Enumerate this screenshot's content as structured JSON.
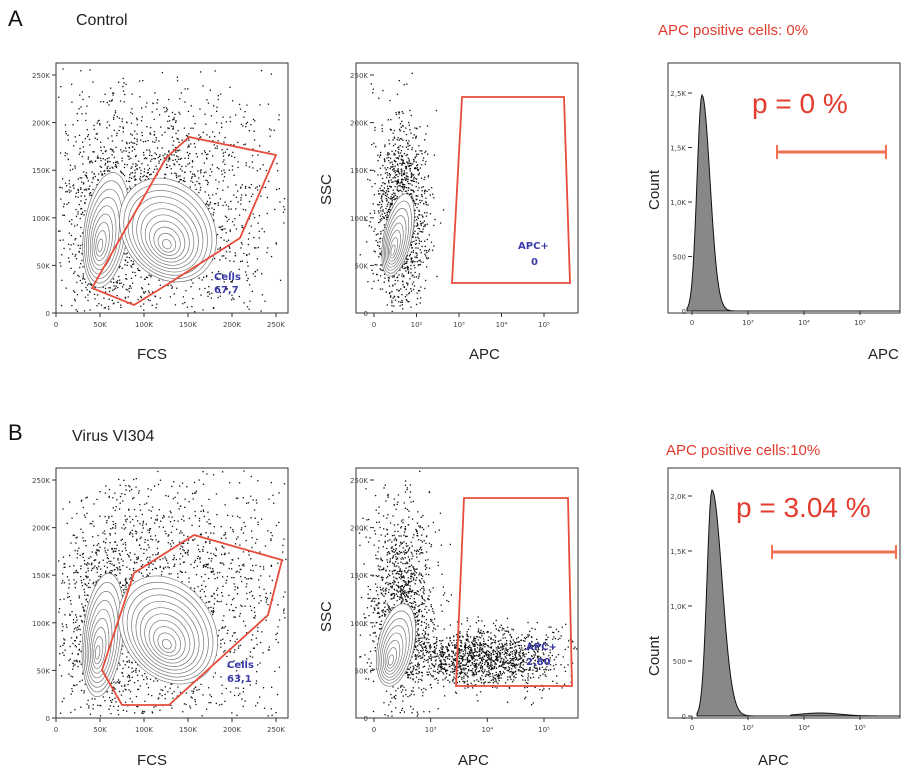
{
  "colors": {
    "gate": "#e74c3c",
    "gate_label": "#3a3aa8",
    "marker": "#f07050",
    "stat": "#e33b2e"
  },
  "panel_a": {
    "letter": "A",
    "title": "Control",
    "positive_text": "APC positive cells: 0%",
    "fcs_xlabel": "FCS",
    "apc_xlabel": "APC",
    "ssc_ylabel": "SSC",
    "hist_xlabel": "APC",
    "hist_ylabel": "Count",
    "p_text": "p = 0 %",
    "cells_gate_name": "Cells",
    "cells_gate_value": "67,7",
    "apc_gate_name": "APC+",
    "apc_gate_value": "0"
  },
  "panel_b": {
    "letter": "B",
    "title": "Virus VI304",
    "positive_text": "APC positive cells:10%",
    "fcs_xlabel": "FCS",
    "apc_xlabel": "APC",
    "ssc_ylabel": "SSC",
    "hist_xlabel": "APC",
    "hist_ylabel": "Count",
    "p_text": "p = 3.04 %",
    "cells_gate_name": "Cells",
    "cells_gate_value": "63,1",
    "apc_gate_name": "APC+",
    "apc_gate_value": "2,80"
  },
  "chart_data": [
    {
      "type": "scatter",
      "panel": "A",
      "plot": "FSC vs SSC",
      "xlabel": "FCS",
      "ylabel": "",
      "x_ticks": [
        "0",
        "50K",
        "100K",
        "150K",
        "200K",
        "250K"
      ],
      "y_ticks": [
        "0",
        "50K",
        "100K",
        "150K",
        "200K",
        "250K"
      ],
      "populations": [
        {
          "x": 55000,
          "y": 100000
        },
        {
          "x": 130000,
          "y": 90000
        }
      ],
      "gate": {
        "name": "Cells",
        "value": 67.7
      }
    },
    {
      "type": "scatter",
      "panel": "A",
      "plot": "APC vs SSC",
      "xlabel": "APC",
      "ylabel": "SSC",
      "x_ticks": [
        "0",
        "10²",
        "10³",
        "10⁴",
        "10⁵"
      ],
      "y_ticks": [
        "0",
        "50K",
        "100K",
        "150K",
        "200K",
        "250K"
      ],
      "gate": {
        "name": "APC+",
        "value": 0
      }
    },
    {
      "type": "area",
      "panel": "A",
      "plot": "APC histogram",
      "xlabel": "APC",
      "ylabel": "Count",
      "y_ticks": [
        "0",
        "500",
        "1,0K",
        "1,5K",
        "2,5K"
      ],
      "x_ticks": [
        "0",
        "10³",
        "10⁴",
        "10⁵"
      ],
      "peak_count": 2400,
      "stat": "p = 0 %"
    },
    {
      "type": "scatter",
      "panel": "B",
      "plot": "FSC vs SSC",
      "xlabel": "FCS",
      "ylabel": "",
      "x_ticks": [
        "0",
        "50K",
        "100K",
        "150K",
        "200K",
        "250K"
      ],
      "y_ticks": [
        "0",
        "50K",
        "100K",
        "150K",
        "200K",
        "250K"
      ],
      "populations": [
        {
          "x": 50000,
          "y": 110000
        },
        {
          "x": 125000,
          "y": 85000
        }
      ],
      "gate": {
        "name": "Cells",
        "value": 63.1
      }
    },
    {
      "type": "scatter",
      "panel": "B",
      "plot": "APC vs SSC",
      "xlabel": "APC",
      "ylabel": "SSC",
      "x_ticks": [
        "0",
        "10³",
        "10⁴",
        "10⁵"
      ],
      "y_ticks": [
        "0",
        "50K",
        "100K",
        "150K",
        "200K",
        "250K"
      ],
      "gate": {
        "name": "APC+",
        "value": 2.8
      }
    },
    {
      "type": "area",
      "panel": "B",
      "plot": "APC histogram",
      "xlabel": "APC",
      "ylabel": "Count",
      "y_ticks": [
        "0",
        "500",
        "1,0K",
        "1,5K",
        "2,0K"
      ],
      "x_ticks": [
        "0",
        "10³",
        "10⁴",
        "10⁵"
      ],
      "peak_count": 2000,
      "stat": "p = 3.04 %"
    }
  ]
}
